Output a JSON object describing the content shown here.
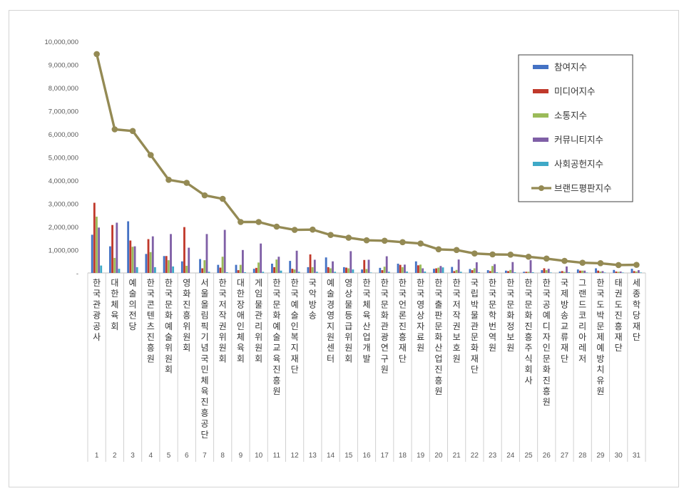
{
  "chart_data": {
    "type": "bar",
    "ylim": [
      0,
      10000000
    ],
    "yticks": [
      "-",
      "1,000,000",
      "2,000,000",
      "3,000,000",
      "4,000,000",
      "5,000,000",
      "6,000,000",
      "7,000,000",
      "8,000,000",
      "9,000,000",
      "10,000,000"
    ],
    "ytick_values": [
      0,
      1000000,
      2000000,
      3000000,
      4000000,
      5000000,
      6000000,
      7000000,
      8000000,
      9000000,
      10000000
    ],
    "grid": false,
    "legend_position": "top-right",
    "ranks": [
      "1",
      "2",
      "3",
      "4",
      "5",
      "6",
      "7",
      "8",
      "9",
      "10",
      "11",
      "12",
      "13",
      "14",
      "15",
      "16",
      "17",
      "18",
      "19",
      "20",
      "21",
      "22",
      "23",
      "24",
      "25",
      "26",
      "27",
      "28",
      "29",
      "30",
      "31"
    ],
    "categories": [
      "한국관광공사",
      "대한체육회",
      "예술의전당",
      "한국콘텐츠진흥원",
      "한국문화예술위원회",
      "영화진흥위원회",
      "서울올림픽기념국민체육진흥공단",
      "한국저작권위원회",
      "대한장애인체육회",
      "게임물관리위원회",
      "한국문화예술교육진흥원",
      "한국예술인복지재단",
      "국악방송",
      "예술경영지원센터",
      "영상물등급위원회",
      "한국체육산업개발",
      "한국문화관광연구원",
      "한국언론진흥재단",
      "한국영상자료원",
      "한국출판문화산업진흥원",
      "한국저작권보호원",
      "국립박물관문화재단",
      "한국문학번역원",
      "한국문화정보원",
      "한국문화진흥주식회사",
      "한국공예디자인문화진흥원",
      "국제방송교류재단",
      "그랜드코리아레저",
      "한국도박문제예방치유원",
      "태권도진흥재단",
      "세종학당재단"
    ],
    "series": [
      {
        "name": "참여지수",
        "kind": "bar",
        "color": "#4472C4",
        "values": [
          1650000,
          1150000,
          2230000,
          820000,
          730000,
          500000,
          600000,
          350000,
          350000,
          180000,
          400000,
          520000,
          250000,
          670000,
          250000,
          150000,
          220000,
          400000,
          500000,
          180000,
          260000,
          170000,
          120000,
          100000,
          50000,
          120000,
          60000,
          150000,
          200000,
          130000,
          180000
        ]
      },
      {
        "name": "미디어지수",
        "kind": "bar",
        "color": "#C0392B",
        "values": [
          3030000,
          2070000,
          1400000,
          1460000,
          730000,
          1980000,
          200000,
          230000,
          120000,
          220000,
          250000,
          180000,
          800000,
          250000,
          230000,
          560000,
          120000,
          350000,
          330000,
          200000,
          80000,
          120000,
          80000,
          80000,
          50000,
          200000,
          80000,
          100000,
          100000,
          60000,
          80000
        ]
      },
      {
        "name": "소통지수",
        "kind": "bar",
        "color": "#9BBB59",
        "values": [
          2430000,
          650000,
          1130000,
          900000,
          550000,
          310000,
          550000,
          700000,
          350000,
          450000,
          580000,
          150000,
          250000,
          200000,
          200000,
          170000,
          270000,
          250000,
          360000,
          230000,
          130000,
          200000,
          300000,
          130000,
          50000,
          120000,
          50000,
          100000,
          60000,
          50000,
          60000
        ]
      },
      {
        "name": "커뮤니티지수",
        "kind": "bar",
        "color": "#7F5FA6",
        "values": [
          1960000,
          2170000,
          1150000,
          1580000,
          1680000,
          1090000,
          1680000,
          1860000,
          990000,
          1270000,
          700000,
          960000,
          570000,
          500000,
          940000,
          570000,
          720000,
          360000,
          200000,
          300000,
          580000,
          460000,
          380000,
          470000,
          550000,
          180000,
          280000,
          100000,
          80000,
          60000,
          120000
        ]
      },
      {
        "name": "사회공헌지수",
        "kind": "bar",
        "color": "#3FA9C7",
        "values": [
          320000,
          180000,
          250000,
          250000,
          280000,
          0,
          50000,
          30000,
          30000,
          50000,
          100000,
          50000,
          50000,
          50000,
          150000,
          20000,
          50000,
          60000,
          60000,
          240000,
          50000,
          30000,
          30000,
          30000,
          30000,
          20000,
          30000,
          20000,
          20000,
          20000,
          20000
        ]
      },
      {
        "name": "브랜드평판지수",
        "kind": "line",
        "color": "#948A54",
        "values": [
          9450000,
          6200000,
          6130000,
          5090000,
          4020000,
          3890000,
          3350000,
          3200000,
          2200000,
          2200000,
          2000000,
          1860000,
          1870000,
          1640000,
          1520000,
          1410000,
          1390000,
          1330000,
          1270000,
          1020000,
          990000,
          840000,
          800000,
          790000,
          700000,
          620000,
          520000,
          440000,
          420000,
          340000,
          350000
        ]
      }
    ]
  }
}
